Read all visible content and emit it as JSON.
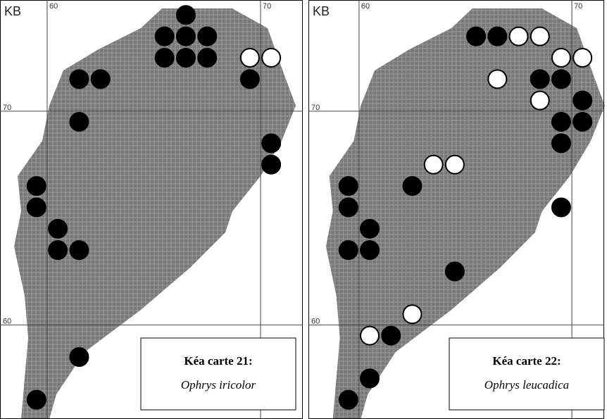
{
  "maps": [
    {
      "grid_label": "KB",
      "title": "Kéa carte 21:",
      "species": "Ophrys iricolor",
      "xlim": [
        57.79,
        71.98
      ],
      "ylim": [
        55.6,
        75.2
      ],
      "xticks": [
        60,
        70
      ],
      "yticks": [
        60,
        70
      ],
      "dots": [
        {
          "x": 66.5,
          "y": 74.5,
          "color": "#000000"
        },
        {
          "x": 65.5,
          "y": 73.5,
          "color": "#000000"
        },
        {
          "x": 66.5,
          "y": 73.5,
          "color": "#000000"
        },
        {
          "x": 67.5,
          "y": 73.5,
          "color": "#000000"
        },
        {
          "x": 65.5,
          "y": 72.5,
          "color": "#000000"
        },
        {
          "x": 66.5,
          "y": 72.5,
          "color": "#000000"
        },
        {
          "x": 67.5,
          "y": 72.5,
          "color": "#000000"
        },
        {
          "x": 69.5,
          "y": 72.5,
          "color": "#ffffff"
        },
        {
          "x": 70.5,
          "y": 72.5,
          "color": "#ffffff"
        },
        {
          "x": 61.5,
          "y": 71.5,
          "color": "#000000"
        },
        {
          "x": 62.5,
          "y": 71.5,
          "color": "#000000"
        },
        {
          "x": 69.5,
          "y": 71.5,
          "color": "#000000"
        },
        {
          "x": 61.5,
          "y": 69.5,
          "color": "#000000"
        },
        {
          "x": 70.5,
          "y": 68.5,
          "color": "#000000"
        },
        {
          "x": 70.5,
          "y": 67.5,
          "color": "#000000"
        },
        {
          "x": 59.5,
          "y": 66.5,
          "color": "#000000"
        },
        {
          "x": 59.5,
          "y": 65.5,
          "color": "#000000"
        },
        {
          "x": 60.5,
          "y": 64.5,
          "color": "#000000"
        },
        {
          "x": 60.5,
          "y": 63.5,
          "color": "#000000"
        },
        {
          "x": 61.5,
          "y": 63.5,
          "color": "#000000"
        },
        {
          "x": 61.5,
          "y": 58.5,
          "color": "#000000"
        },
        {
          "x": 59.5,
          "y": 56.5,
          "color": "#000000"
        }
      ]
    },
    {
      "grid_label": "KB",
      "title": "Kéa carte 22:",
      "species": "Ophrys leucadica",
      "xlim": [
        57.62,
        71.52
      ],
      "ylim": [
        55.6,
        75.2
      ],
      "xticks": [
        60,
        70
      ],
      "yticks": [
        60,
        70
      ],
      "dots": [
        {
          "x": 65.5,
          "y": 73.5,
          "color": "#000000"
        },
        {
          "x": 66.5,
          "y": 73.5,
          "color": "#000000"
        },
        {
          "x": 67.5,
          "y": 73.5,
          "color": "#ffffff"
        },
        {
          "x": 68.5,
          "y": 73.5,
          "color": "#ffffff"
        },
        {
          "x": 69.5,
          "y": 72.5,
          "color": "#ffffff"
        },
        {
          "x": 70.5,
          "y": 72.5,
          "color": "#ffffff"
        },
        {
          "x": 66.5,
          "y": 71.5,
          "color": "#ffffff"
        },
        {
          "x": 68.5,
          "y": 71.5,
          "color": "#000000"
        },
        {
          "x": 69.5,
          "y": 71.5,
          "color": "#000000"
        },
        {
          "x": 68.5,
          "y": 70.5,
          "color": "#ffffff"
        },
        {
          "x": 70.5,
          "y": 70.5,
          "color": "#000000"
        },
        {
          "x": 69.5,
          "y": 69.5,
          "color": "#000000"
        },
        {
          "x": 70.5,
          "y": 69.5,
          "color": "#000000"
        },
        {
          "x": 69.5,
          "y": 68.5,
          "color": "#000000"
        },
        {
          "x": 63.5,
          "y": 67.5,
          "color": "#ffffff"
        },
        {
          "x": 64.5,
          "y": 67.5,
          "color": "#ffffff"
        },
        {
          "x": 59.5,
          "y": 66.5,
          "color": "#000000"
        },
        {
          "x": 62.5,
          "y": 66.5,
          "color": "#000000"
        },
        {
          "x": 59.5,
          "y": 65.5,
          "color": "#000000"
        },
        {
          "x": 69.5,
          "y": 65.5,
          "color": "#000000"
        },
        {
          "x": 60.5,
          "y": 64.5,
          "color": "#000000"
        },
        {
          "x": 59.5,
          "y": 63.5,
          "color": "#000000"
        },
        {
          "x": 60.5,
          "y": 63.5,
          "color": "#000000"
        },
        {
          "x": 64.5,
          "y": 62.5,
          "color": "#000000"
        },
        {
          "x": 62.5,
          "y": 60.5,
          "color": "#ffffff"
        },
        {
          "x": 60.5,
          "y": 59.5,
          "color": "#ffffff"
        },
        {
          "x": 61.5,
          "y": 59.5,
          "color": "#000000"
        },
        {
          "x": 60.5,
          "y": 57.5,
          "color": "#000000"
        },
        {
          "x": 59.5,
          "y": 56.5,
          "color": "#000000"
        }
      ]
    }
  ]
}
